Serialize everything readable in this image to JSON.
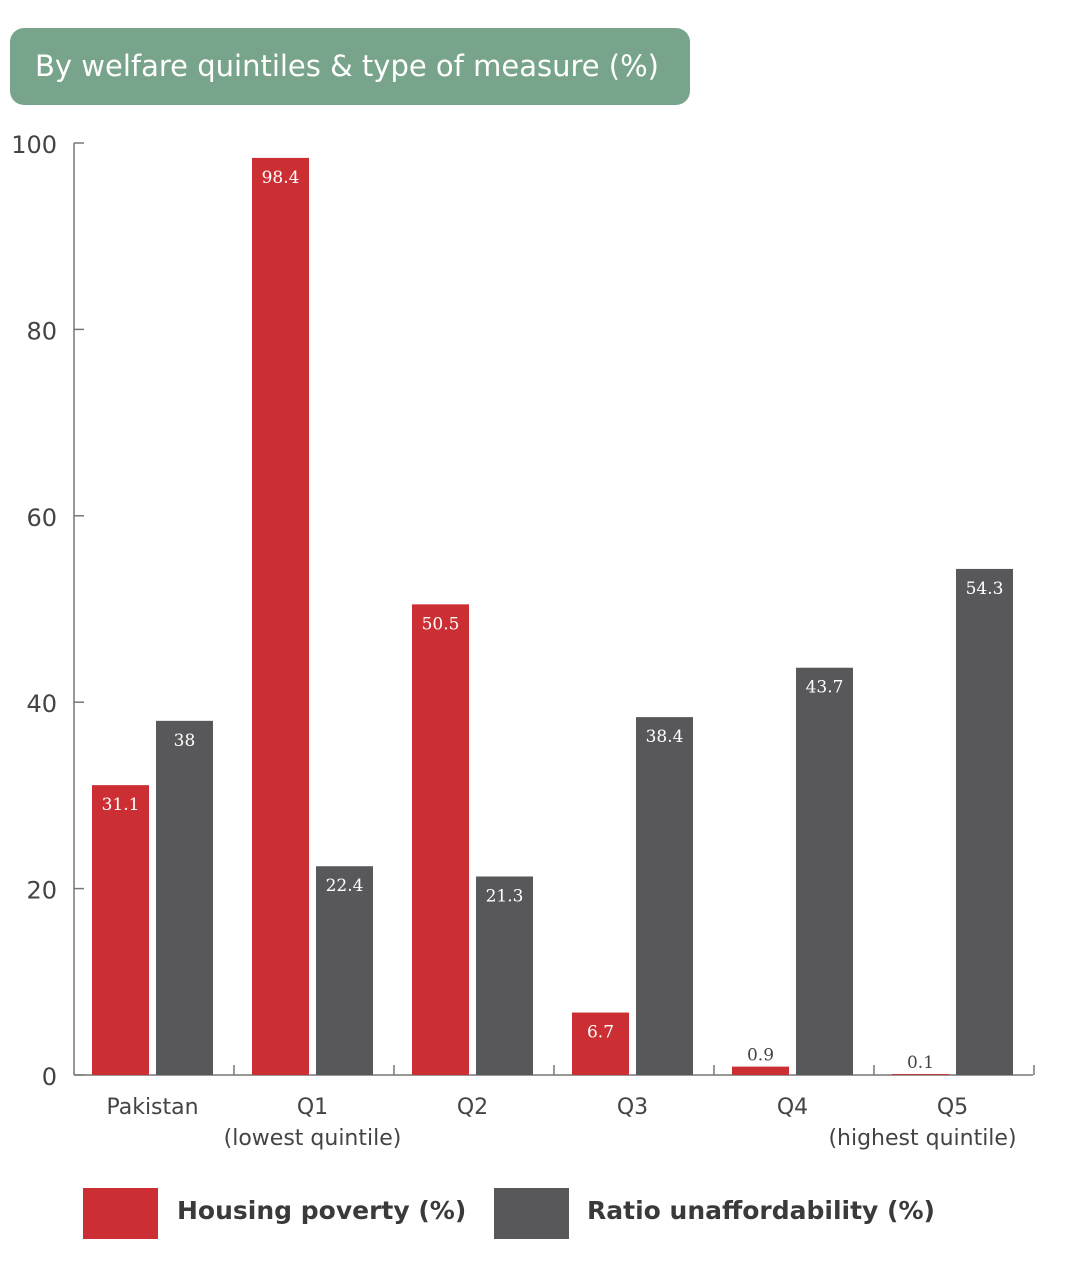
{
  "title": "By welfare quintiles & type of measure (%)",
  "colors": {
    "title_bg": "#77a48b",
    "housing_poverty": "#cc2f33",
    "ratio_unaffordability": "#58585a",
    "axis": "#777777"
  },
  "legend": [
    {
      "label": "Housing poverty (%)",
      "color": "#cc2f33"
    },
    {
      "label": "Ratio unaffordability (%)",
      "color": "#58585a"
    }
  ],
  "chart_data": {
    "type": "bar",
    "categories": [
      [
        "Pakistan"
      ],
      [
        "Q1",
        "(lowest quintile)"
      ],
      [
        "Q2"
      ],
      [
        "Q3"
      ],
      [
        "Q4"
      ],
      [
        "Q5",
        "(highest quintile)"
      ]
    ],
    "series": [
      {
        "name": "Housing poverty (%)",
        "values": [
          31.1,
          98.4,
          50.5,
          6.7,
          0.9,
          0.1
        ],
        "labels": [
          "31.1",
          "98.4",
          "50.5",
          "6.7",
          "0.9",
          "0.1"
        ]
      },
      {
        "name": "Ratio unaffordability (%)",
        "values": [
          38,
          22.4,
          21.3,
          38.4,
          43.7,
          54.3
        ],
        "labels": [
          "38",
          "22.4",
          "21.3",
          "38.4",
          "43.7",
          "54.3"
        ]
      }
    ],
    "yticks": [
      "0",
      "20",
      "40",
      "60",
      "80",
      "100"
    ],
    "ylim": [
      0,
      100
    ],
    "grid": false,
    "legend_position": "bottom"
  }
}
